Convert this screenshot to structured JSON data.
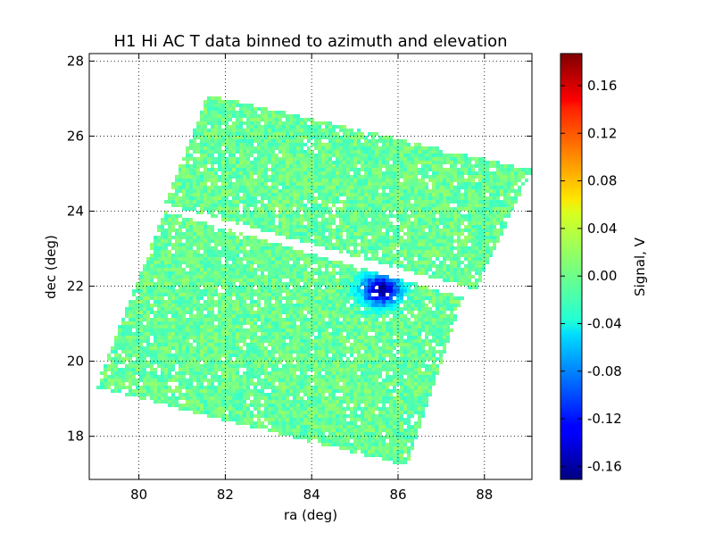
{
  "chart_data": {
    "type": "heatmap",
    "title": "H1 Hi AC T data binned to azimuth and elevation",
    "xlabel": "ra (deg)",
    "ylabel": "dec (deg)",
    "xlim": [
      78.85,
      89.1
    ],
    "ylim": [
      16.85,
      28.2
    ],
    "xticks": [
      "80",
      "82",
      "84",
      "86",
      "88"
    ],
    "yticks": [
      "18",
      "20",
      "22",
      "24",
      "26",
      "28"
    ],
    "grid": true,
    "colorbar": {
      "label": "Signal, V",
      "range": [
        -0.171,
        0.187
      ],
      "ticks": [
        "-0.16",
        "-0.12",
        "-0.08",
        "-0.04",
        "0.00",
        "0.04",
        "0.08",
        "0.12",
        "0.16"
      ],
      "colormap": "jet"
    },
    "background_level": 0.0,
    "scan_regions": [
      {
        "name": "upper-strip",
        "corners_radec": [
          [
            81.6,
            27.1
          ],
          [
            89.1,
            25.1
          ],
          [
            87.8,
            21.9
          ],
          [
            80.6,
            24.2
          ]
        ]
      },
      {
        "name": "lower-strip",
        "corners_radec": [
          [
            80.6,
            24.0
          ],
          [
            87.5,
            21.7
          ],
          [
            86.2,
            17.2
          ],
          [
            79.0,
            19.3
          ]
        ]
      }
    ],
    "source": {
      "ra": 85.6,
      "dec": 21.9,
      "peak": -0.165,
      "radius_deg": 0.9
    }
  }
}
